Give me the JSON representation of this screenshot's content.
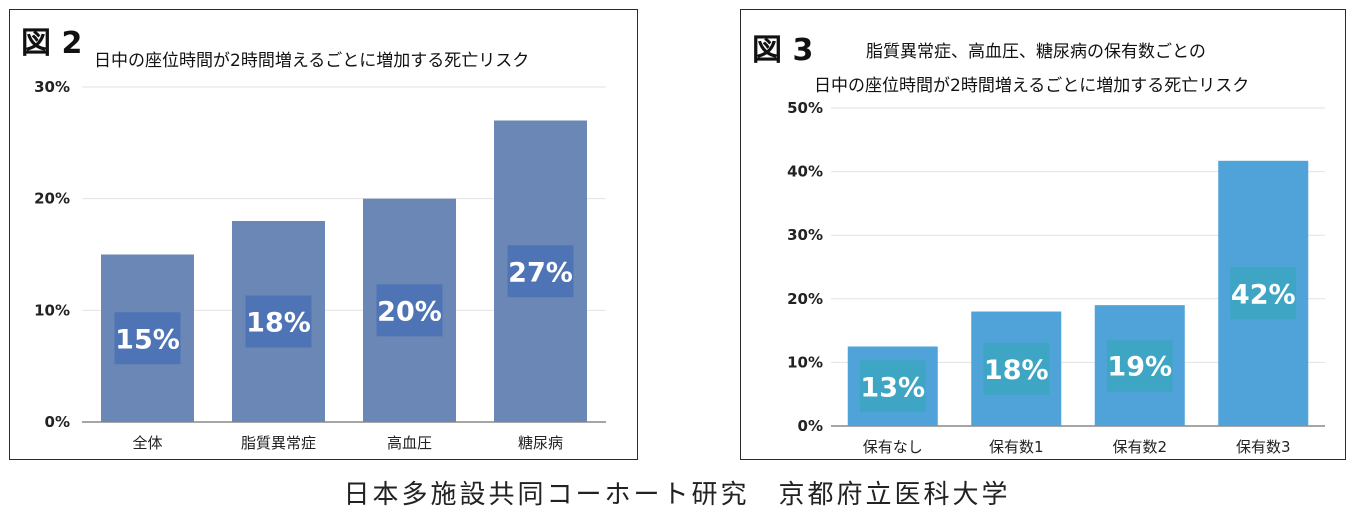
{
  "figures": [
    {
      "label": "図 2",
      "title_lines": [
        "日中の座位時間が2時間増えるごとに増加する死亡リスク"
      ]
    },
    {
      "label": "図 3",
      "title_lines": [
        "脂質異常症、高血圧、糖尿病の保有数ごとの",
        "日中の座位時間が2時間増えるごとに増加する死亡リスク"
      ]
    }
  ],
  "footer": "日本多施設共同コーホート研究　京都府立医科大学",
  "chart_data": [
    {
      "type": "bar",
      "title": "日中の座位時間が2時間増えるごとに増加する死亡リスク",
      "categories": [
        "全体",
        "脂質異常症",
        "高血圧",
        "糖尿病"
      ],
      "values": [
        15,
        18,
        20,
        27
      ],
      "data_labels": [
        "15%",
        "18%",
        "20%",
        "27%"
      ],
      "yticks": [
        "0%",
        "10%",
        "20%",
        "30%"
      ],
      "ylim": [
        0,
        30
      ],
      "grid": true,
      "colors": {
        "bar": "#6a87b6",
        "label_box": "#4e74b5"
      }
    },
    {
      "type": "bar",
      "title": "脂質異常症、高血圧、糖尿病の保有数ごとの日中の座位時間が2時間増えるごとに増加する死亡リスク",
      "categories": [
        "保有なし",
        "保有数1",
        "保有数2",
        "保有数3"
      ],
      "values": [
        12.5,
        18,
        19,
        41.7
      ],
      "data_labels": [
        "13%",
        "18%",
        "19%",
        "42%"
      ],
      "yticks": [
        "0%",
        "10%",
        "20%",
        "30%",
        "40%",
        "50%"
      ],
      "ylim": [
        0,
        50
      ],
      "grid": true,
      "colors": {
        "bar": "#4fa3d9",
        "label_box": "#3ea6c4"
      }
    }
  ]
}
